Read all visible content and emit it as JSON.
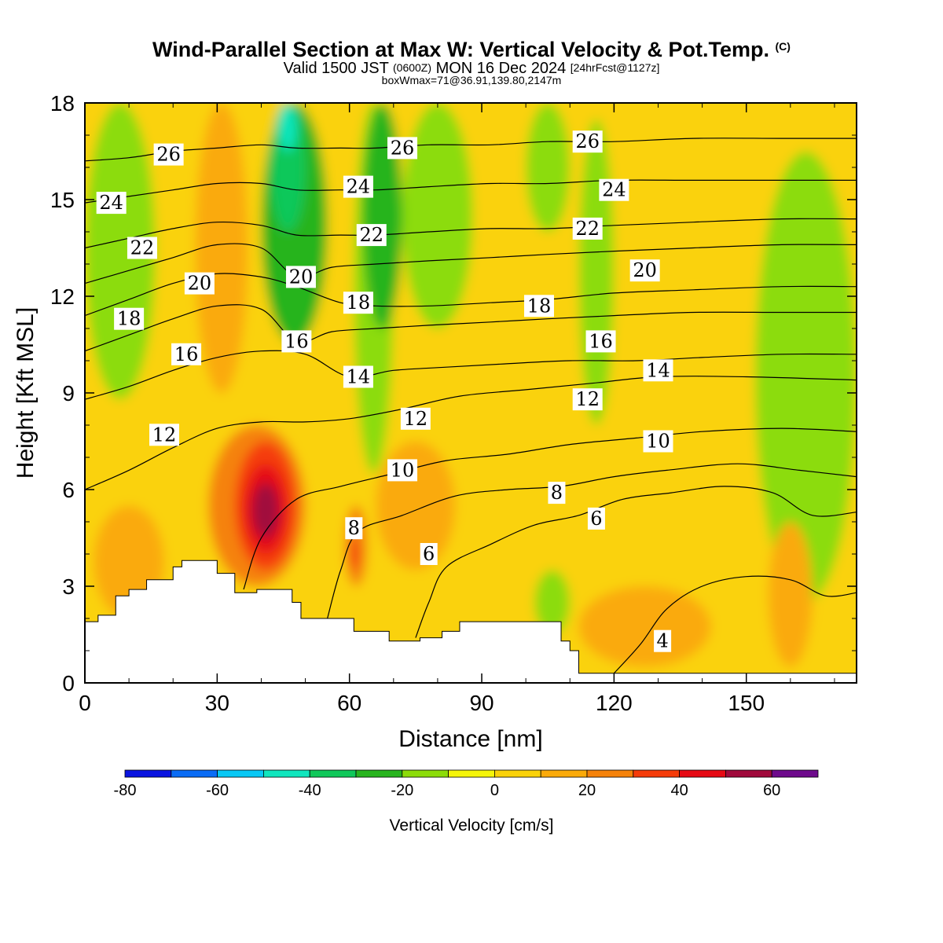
{
  "header": {
    "title_main": "Wind-Parallel Section at Max W: Vertical Velocity & Pot.Temp.",
    "title_copyright": "(C)",
    "valid_prefix": "Valid 1500 JST",
    "valid_utc": "(0600Z)",
    "valid_date": "MON 16 Dec 2024",
    "forecast": "[24hrFcst@1127z]",
    "box_info": "boxWmax=71@36.91,139.80,2147m"
  },
  "colorbar": {
    "title": "Vertical Velocity [cm/s]",
    "levels": [
      -80,
      -70,
      -60,
      -50,
      -40,
      -30,
      -20,
      -10,
      0,
      10,
      20,
      30,
      40,
      50,
      60,
      70
    ],
    "colors": [
      "#0a14e0",
      "#0a6cf5",
      "#08c8f5",
      "#10e6be",
      "#10c85a",
      "#28b41e",
      "#8cdc0a",
      "#f5f50a",
      "#fad20a",
      "#faaa0a",
      "#f5820a",
      "#f53c0a",
      "#e60a14",
      "#a00a3c",
      "#6e0a8c"
    ],
    "tick_labels": [
      "-80",
      "-60",
      "-40",
      "-20",
      "0",
      "20",
      "40",
      "60"
    ]
  },
  "chart_data": {
    "type": "heatmap",
    "title": "Wind-Parallel Section at Max W: Vertical Velocity & Pot.Temp.",
    "xlabel": "Distance [nm]",
    "ylabel": "Height [Kft MSL]",
    "xlim": [
      0,
      175
    ],
    "ylim": [
      0,
      18
    ],
    "x_ticks": [
      0,
      30,
      60,
      90,
      120,
      150
    ],
    "y_ticks": [
      0,
      3,
      6,
      9,
      12,
      15,
      18
    ],
    "x_tick_labels": [
      "0",
      "30",
      "60",
      "90",
      "120",
      "150"
    ],
    "y_tick_labels": [
      "0",
      "3",
      "6",
      "9",
      "12",
      "15",
      "18"
    ],
    "vertical_velocity_cells": [
      {
        "x": [
          0,
          175
        ],
        "z": [
          0,
          18
        ],
        "w": 5
      },
      {
        "x": [
          0,
          175
        ],
        "z": [
          8.5,
          18
        ],
        "w": 2
      },
      {
        "x": [
          0,
          16
        ],
        "z": [
          8.8,
          18
        ],
        "w": -15
      },
      {
        "x": [
          25,
          37
        ],
        "z": [
          9,
          18
        ],
        "w": 18
      },
      {
        "x": [
          40,
          55
        ],
        "z": [
          10.5,
          18
        ],
        "w": -25
      },
      {
        "x": [
          42,
          50
        ],
        "z": [
          14,
          18
        ],
        "w": -35
      },
      {
        "x": [
          44,
          48
        ],
        "z": [
          16.5,
          18
        ],
        "w": -48
      },
      {
        "x": [
          61,
          70
        ],
        "z": [
          6.5,
          18
        ],
        "w": -15
      },
      {
        "x": [
          63,
          72
        ],
        "z": [
          11,
          18
        ],
        "w": -25
      },
      {
        "x": [
          72,
          88
        ],
        "z": [
          11,
          18
        ],
        "w": -12
      },
      {
        "x": [
          100,
          110
        ],
        "z": [
          14,
          18
        ],
        "w": -12
      },
      {
        "x": [
          112,
          120
        ],
        "z": [
          8,
          17.5
        ],
        "w": -15
      },
      {
        "x": [
          152,
          175
        ],
        "z": [
          2.5,
          16.5
        ],
        "w": -15
      },
      {
        "x": [
          28,
          50
        ],
        "z": [
          3,
          8
        ],
        "w": 25
      },
      {
        "x": [
          34,
          48
        ],
        "z": [
          3.5,
          7.5
        ],
        "w": 35
      },
      {
        "x": [
          36,
          46
        ],
        "z": [
          4,
          6.8
        ],
        "w": 45
      },
      {
        "x": [
          38,
          44
        ],
        "z": [
          4.5,
          6.2
        ],
        "w": 55
      },
      {
        "x": [
          59,
          64
        ],
        "z": [
          3,
          5.5
        ],
        "w": 22
      },
      {
        "x": [
          60,
          62
        ],
        "z": [
          3.5,
          4.5
        ],
        "w": 32
      },
      {
        "x": [
          2,
          18
        ],
        "z": [
          2,
          5.5
        ],
        "w": 15
      },
      {
        "x": [
          66,
          84
        ],
        "z": [
          3.5,
          7.5
        ],
        "w": 13
      },
      {
        "x": [
          112,
          142
        ],
        "z": [
          0.5,
          3
        ],
        "w": 13
      },
      {
        "x": [
          155,
          165
        ],
        "z": [
          0.5,
          5
        ],
        "w": 15
      },
      {
        "x": [
          102,
          110
        ],
        "z": [
          1.5,
          3.5
        ],
        "w": -12
      }
    ],
    "terrain_profile": [
      [
        0,
        1.9
      ],
      [
        3,
        2.1
      ],
      [
        7,
        2.7
      ],
      [
        10,
        2.9
      ],
      [
        14,
        3.2
      ],
      [
        20,
        3.6
      ],
      [
        22,
        3.8
      ],
      [
        27,
        3.8
      ],
      [
        30,
        3.4
      ],
      [
        34,
        2.8
      ],
      [
        39,
        2.9
      ],
      [
        45,
        2.9
      ],
      [
        47,
        2.5
      ],
      [
        49,
        2
      ],
      [
        55,
        2
      ],
      [
        61,
        1.6
      ],
      [
        66,
        1.6
      ],
      [
        69,
        1.3
      ],
      [
        76,
        1.4
      ],
      [
        81,
        1.6
      ],
      [
        85,
        1.9
      ],
      [
        95,
        1.9
      ],
      [
        106,
        1.9
      ],
      [
        108,
        1.3
      ],
      [
        110,
        1
      ],
      [
        112,
        0.3
      ],
      [
        175,
        0.3
      ]
    ],
    "theta_contours": [
      {
        "level": 4,
        "label": "4",
        "points": [
          [
            120,
            0.3
          ],
          [
            126,
            1.2
          ],
          [
            132,
            2.3
          ],
          [
            140,
            3
          ],
          [
            150,
            3.3
          ],
          [
            160,
            3.2
          ],
          [
            168,
            2.7
          ],
          [
            175,
            2.8
          ]
        ]
      },
      {
        "level": 6,
        "label": "6",
        "points": [
          [
            75,
            1.4
          ],
          [
            78,
            2.5
          ],
          [
            82,
            3.6
          ],
          [
            92,
            4.3
          ],
          [
            102,
            4.9
          ],
          [
            112,
            5.2
          ],
          [
            122,
            5.7
          ],
          [
            133,
            5.9
          ],
          [
            145,
            6.1
          ],
          [
            156,
            5.9
          ],
          [
            165,
            5.2
          ],
          [
            175,
            5.3
          ]
        ]
      },
      {
        "level": 8,
        "label": "8",
        "points": [
          [
            55,
            2
          ],
          [
            58,
            3.5
          ],
          [
            62,
            4.7
          ],
          [
            72,
            5.2
          ],
          [
            84,
            5.8
          ],
          [
            96,
            6
          ],
          [
            108,
            6.1
          ],
          [
            120,
            6.4
          ],
          [
            132,
            6.6
          ],
          [
            148,
            6.8
          ],
          [
            162,
            6.6
          ],
          [
            175,
            6.4
          ]
        ]
      },
      {
        "level": 10,
        "label": "10",
        "points": [
          [
            36,
            2.9
          ],
          [
            40,
            4.5
          ],
          [
            48,
            5.7
          ],
          [
            58,
            6.1
          ],
          [
            70,
            6.5
          ],
          [
            82,
            6.9
          ],
          [
            96,
            7.1
          ],
          [
            110,
            7.4
          ],
          [
            125,
            7.6
          ],
          [
            140,
            7.8
          ],
          [
            158,
            7.9
          ],
          [
            175,
            7.8
          ]
        ]
      },
      {
        "level": 12,
        "label": "12",
        "points": [
          [
            0,
            6
          ],
          [
            10,
            6.6
          ],
          [
            20,
            7.3
          ],
          [
            30,
            7.9
          ],
          [
            40,
            8.1
          ],
          [
            50,
            8.1
          ],
          [
            60,
            8.2
          ],
          [
            72,
            8.5
          ],
          [
            85,
            8.9
          ],
          [
            100,
            9.1
          ],
          [
            115,
            9.3
          ],
          [
            130,
            9.5
          ],
          [
            150,
            9.5
          ],
          [
            175,
            9.4
          ]
        ]
      },
      {
        "level": 14,
        "label": "14",
        "points": [
          [
            0,
            8.8
          ],
          [
            10,
            9.2
          ],
          [
            20,
            9.7
          ],
          [
            30,
            10.1
          ],
          [
            40,
            10.3
          ],
          [
            50,
            10.2
          ],
          [
            60,
            9.5
          ],
          [
            70,
            9.7
          ],
          [
            82,
            9.8
          ],
          [
            95,
            9.9
          ],
          [
            110,
            10
          ],
          [
            125,
            10
          ],
          [
            140,
            10.1
          ],
          [
            158,
            10.2
          ],
          [
            175,
            10.2
          ]
        ]
      },
      {
        "level": 16,
        "label": "16",
        "points": [
          [
            0,
            10.3
          ],
          [
            10,
            10.8
          ],
          [
            20,
            11.3
          ],
          [
            30,
            11.7
          ],
          [
            40,
            11.6
          ],
          [
            48,
            10.6
          ],
          [
            56,
            10.9
          ],
          [
            66,
            11
          ],
          [
            78,
            11.1
          ],
          [
            92,
            11.2
          ],
          [
            105,
            11.3
          ],
          [
            120,
            11.4
          ],
          [
            138,
            11.5
          ],
          [
            158,
            11.5
          ],
          [
            175,
            11.5
          ]
        ]
      },
      {
        "level": 18,
        "label": "18",
        "points": [
          [
            0,
            11.4
          ],
          [
            10,
            11.9
          ],
          [
            20,
            12.4
          ],
          [
            30,
            12.7
          ],
          [
            40,
            12.6
          ],
          [
            48,
            12.3
          ],
          [
            58,
            11.8
          ],
          [
            66,
            11.7
          ],
          [
            78,
            11.7
          ],
          [
            92,
            11.8
          ],
          [
            105,
            11.9
          ],
          [
            120,
            12.1
          ],
          [
            138,
            12.2
          ],
          [
            158,
            12.3
          ],
          [
            175,
            12.3
          ]
        ]
      },
      {
        "level": 20,
        "label": "20",
        "points": [
          [
            0,
            12.4
          ],
          [
            10,
            12.8
          ],
          [
            20,
            13.2
          ],
          [
            30,
            13.6
          ],
          [
            40,
            13.5
          ],
          [
            48,
            12.6
          ],
          [
            56,
            12.9
          ],
          [
            66,
            13
          ],
          [
            78,
            13.1
          ],
          [
            92,
            13.2
          ],
          [
            105,
            13.3
          ],
          [
            120,
            13.4
          ],
          [
            138,
            13.5
          ],
          [
            158,
            13.6
          ],
          [
            175,
            13.6
          ]
        ]
      },
      {
        "level": 22,
        "label": "22",
        "points": [
          [
            0,
            13.5
          ],
          [
            10,
            13.8
          ],
          [
            20,
            14.1
          ],
          [
            30,
            14.3
          ],
          [
            40,
            14.2
          ],
          [
            48,
            13.9
          ],
          [
            58,
            13.9
          ],
          [
            66,
            13.9
          ],
          [
            78,
            14
          ],
          [
            92,
            14.1
          ],
          [
            105,
            14.1
          ],
          [
            120,
            14.2
          ],
          [
            138,
            14.3
          ],
          [
            158,
            14.4
          ],
          [
            175,
            14.4
          ]
        ]
      },
      {
        "level": 24,
        "label": "24",
        "points": [
          [
            0,
            14.9
          ],
          [
            10,
            15.1
          ],
          [
            20,
            15.3
          ],
          [
            30,
            15.5
          ],
          [
            40,
            15.5
          ],
          [
            48,
            15.3
          ],
          [
            58,
            15.3
          ],
          [
            66,
            15.3
          ],
          [
            78,
            15.4
          ],
          [
            92,
            15.5
          ],
          [
            105,
            15.5
          ],
          [
            120,
            15.6
          ],
          [
            138,
            15.6
          ],
          [
            158,
            15.6
          ],
          [
            175,
            15.6
          ]
        ]
      },
      {
        "level": 26,
        "label": "26",
        "points": [
          [
            0,
            16.2
          ],
          [
            10,
            16.3
          ],
          [
            20,
            16.5
          ],
          [
            30,
            16.6
          ],
          [
            40,
            16.7
          ],
          [
            48,
            16.6
          ],
          [
            58,
            16.6
          ],
          [
            66,
            16.6
          ],
          [
            78,
            16.7
          ],
          [
            92,
            16.7
          ],
          [
            105,
            16.8
          ],
          [
            120,
            16.8
          ],
          [
            138,
            16.9
          ],
          [
            158,
            16.9
          ],
          [
            175,
            16.9
          ]
        ]
      }
    ],
    "theta_contour_labels": [
      {
        "text": "26",
        "x": 19,
        "z": 16.4
      },
      {
        "text": "24",
        "x": 6,
        "z": 14.9
      },
      {
        "text": "22",
        "x": 13,
        "z": 13.5
      },
      {
        "text": "20",
        "x": 26,
        "z": 12.4
      },
      {
        "text": "18",
        "x": 10,
        "z": 11.3
      },
      {
        "text": "16",
        "x": 23,
        "z": 10.2
      },
      {
        "text": "12",
        "x": 18,
        "z": 7.7
      },
      {
        "text": "20",
        "x": 49,
        "z": 12.6
      },
      {
        "text": "16",
        "x": 48,
        "z": 10.6
      },
      {
        "text": "26",
        "x": 72,
        "z": 16.6
      },
      {
        "text": "24",
        "x": 62,
        "z": 15.4
      },
      {
        "text": "22",
        "x": 65,
        "z": 13.9
      },
      {
        "text": "18",
        "x": 62,
        "z": 11.8
      },
      {
        "text": "14",
        "x": 62,
        "z": 9.5
      },
      {
        "text": "12",
        "x": 75,
        "z": 8.2
      },
      {
        "text": "10",
        "x": 72,
        "z": 6.6
      },
      {
        "text": "8",
        "x": 61,
        "z": 4.8
      },
      {
        "text": "6",
        "x": 78,
        "z": 4
      },
      {
        "text": "18",
        "x": 103,
        "z": 11.7
      },
      {
        "text": "26",
        "x": 114,
        "z": 16.8
      },
      {
        "text": "24",
        "x": 120,
        "z": 15.3
      },
      {
        "text": "22",
        "x": 114,
        "z": 14.1
      },
      {
        "text": "20",
        "x": 127,
        "z": 12.8
      },
      {
        "text": "16",
        "x": 117,
        "z": 10.6
      },
      {
        "text": "14",
        "x": 130,
        "z": 9.7
      },
      {
        "text": "12",
        "x": 114,
        "z": 8.8
      },
      {
        "text": "10",
        "x": 130,
        "z": 7.5
      },
      {
        "text": "8",
        "x": 107,
        "z": 5.9
      },
      {
        "text": "6",
        "x": 116,
        "z": 5.1
      },
      {
        "text": "4",
        "x": 131,
        "z": 1.3
      }
    ]
  }
}
